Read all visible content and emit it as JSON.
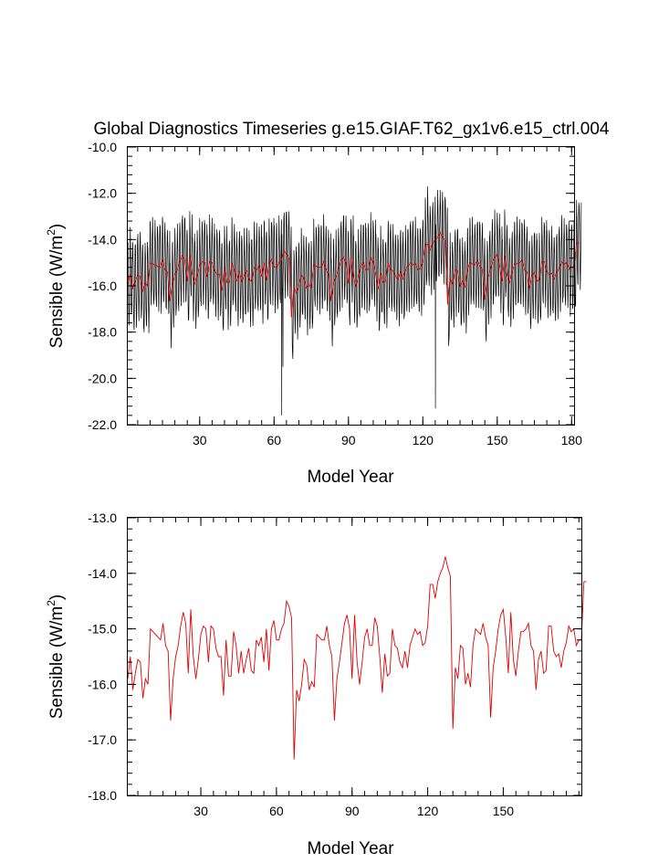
{
  "chart_data": [
    {
      "type": "line",
      "title": "Global Diagnostics Timeseries g.e15.GIAF.T62_gx1v6.e15_ctrl.004",
      "xlabel": "Model Year",
      "ylabel_main": "Sensible (W/m",
      "ylabel_sup": "2",
      "ylabel_end": ")",
      "xlim": [
        1,
        181
      ],
      "ylim": [
        -22.0,
        -10.0
      ],
      "xticks": [
        30,
        60,
        90,
        120,
        150,
        180
      ],
      "yticks": [
        "-10.0",
        "-12.0",
        "-14.0",
        "-16.0",
        "-18.0",
        "-20.0",
        "-22.0"
      ],
      "series": [
        {
          "color": "#000000",
          "kind": "monthly",
          "seasonal_amplitude": 1.8,
          "annual_source": 1,
          "extremes": [
            [
              63.1,
              -21.6
            ],
            [
              125.1,
              -21.3
            ],
            [
              121.9,
              -11.7
            ],
            [
              63.6,
              -19.5
            ]
          ]
        },
        {
          "color": "#e00000",
          "kind": "annual",
          "annual_source": 1
        }
      ]
    },
    {
      "type": "line",
      "title": "",
      "xlabel": "Model Year",
      "ylabel_main": "Sensible (W/m",
      "ylabel_sup": "2",
      "ylabel_end": ")",
      "xlim": [
        1,
        181
      ],
      "ylim": [
        -18.0,
        -13.0
      ],
      "xticks": [
        30,
        60,
        90,
        120,
        150
      ],
      "yticks": [
        "-13.0",
        "-14.0",
        "-15.0",
        "-16.0",
        "-17.0",
        "-18.0"
      ],
      "series": [
        {
          "color": "#e00000",
          "kind": "annual",
          "x_start": 1,
          "values": [
            -15.9,
            -15.5,
            -16.1,
            -15.8,
            -15.55,
            -15.6,
            -16.25,
            -15.9,
            -16.0,
            -15.0,
            -15.05,
            -15.1,
            -15.15,
            -15.2,
            -14.9,
            -15.3,
            -15.4,
            -16.65,
            -15.9,
            -15.5,
            -15.3,
            -14.95,
            -14.7,
            -14.9,
            -15.8,
            -14.65,
            -15.5,
            -15.9,
            -15.55,
            -15.1,
            -14.95,
            -15.0,
            -15.6,
            -14.95,
            -15.0,
            -15.35,
            -15.5,
            -15.5,
            -16.2,
            -15.2,
            -15.85,
            -15.85,
            -15.05,
            -15.3,
            -15.8,
            -15.4,
            -15.8,
            -15.55,
            -15.35,
            -15.75,
            -15.8,
            -15.2,
            -15.3,
            -15.15,
            -15.6,
            -15.0,
            -15.75,
            -15.0,
            -14.85,
            -15.2,
            -15.2,
            -15.0,
            -14.9,
            -14.5,
            -14.6,
            -14.8,
            -17.35,
            -16.1,
            -16.3,
            -16.0,
            -15.55,
            -15.65,
            -16.1,
            -15.95,
            -16.05,
            -15.1,
            -15.15,
            -15.2,
            -15.2,
            -14.95,
            -15.3,
            -15.5,
            -16.65,
            -15.9,
            -15.6,
            -15.25,
            -14.9,
            -14.75,
            -15.0,
            -15.9,
            -14.75,
            -15.6,
            -16.0,
            -15.6,
            -15.15,
            -15.0,
            -15.3,
            -15.3,
            -14.8,
            -14.95,
            -15.5,
            -16.15,
            -15.45,
            -15.85,
            -15.8,
            -15.0,
            -15.3,
            -15.35,
            -15.6,
            -15.7,
            -15.4,
            -15.7,
            -15.3,
            -15.15,
            -15.0,
            -15.1,
            -15.05,
            -15.3,
            -15.25,
            -14.95,
            -14.2,
            -14.2,
            -14.45,
            -14.15,
            -14.0,
            -13.9,
            -13.7,
            -13.9,
            -14.05,
            -16.8,
            -15.7,
            -15.9,
            -15.3,
            -15.35,
            -16.0,
            -15.8,
            -16.05,
            -15.3,
            -15.0,
            -15.05,
            -15.1,
            -14.9,
            -15.15,
            -15.3,
            -16.6,
            -15.7,
            -15.4,
            -15.0,
            -14.75,
            -14.65,
            -15.15,
            -15.8,
            -14.7,
            -15.55,
            -15.85,
            -15.4,
            -15.05,
            -15.05,
            -15.0,
            -14.9,
            -15.3,
            -15.4,
            -16.1,
            -15.55,
            -15.4,
            -15.8,
            -15.75,
            -14.95,
            -14.95,
            -15.4,
            -15.5,
            -15.45,
            -15.7,
            -15.4,
            -15.25,
            -14.95,
            -15.05,
            -15.0,
            -15.3,
            -15.2,
            -15.2,
            -14.15,
            -14.15
          ]
        }
      ]
    }
  ]
}
